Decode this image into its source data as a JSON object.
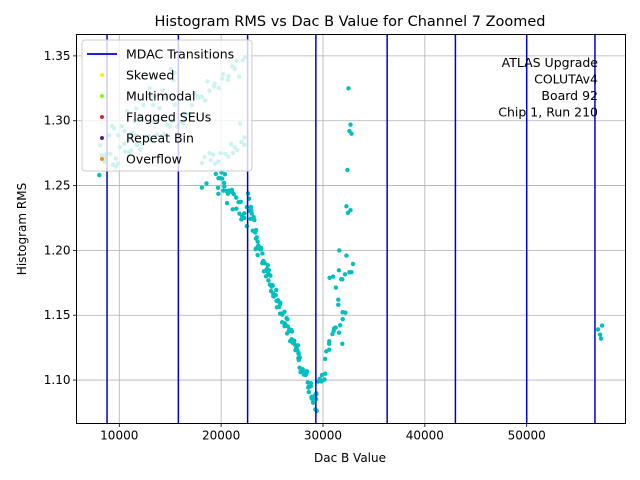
{
  "chart_data": {
    "type": "scatter",
    "title": "Histogram RMS vs Dac B Value for Channel 7 Zoomed",
    "xlabel": "Dac B Value",
    "ylabel": "Histogram RMS",
    "xlim": [
      5800,
      59700
    ],
    "ylim": [
      1.0665,
      1.3665
    ],
    "xticks": [
      10000,
      20000,
      30000,
      40000,
      50000
    ],
    "xtick_labels": [
      "10000",
      "20000",
      "30000",
      "40000",
      "50000"
    ],
    "yticks": [
      1.1,
      1.15,
      1.2,
      1.25,
      1.3,
      1.35
    ],
    "ytick_labels": [
      "1.10",
      "1.15",
      "1.20",
      "1.25",
      "1.30",
      "1.35"
    ],
    "grid": true,
    "legend_position": "upper-left",
    "annotation": [
      "ATLAS Upgrade",
      "COLUTAv4",
      "Board 92",
      "Chip 1, Run 210"
    ],
    "transitions": {
      "name": "MDAC Transitions",
      "color": "#0000cd",
      "x": [
        8800,
        15800,
        22600,
        29300,
        36300,
        43000,
        50000,
        56700
      ]
    },
    "legend": [
      {
        "label": "MDAC Transitions",
        "kind": "line",
        "color": "#0000cd"
      },
      {
        "label": "Skewed",
        "kind": "dot",
        "color": "#ffea00"
      },
      {
        "label": "Multimodal",
        "kind": "dot",
        "color": "#80ff00"
      },
      {
        "label": "Flagged SEUs",
        "kind": "dot",
        "color": "#e0282a"
      },
      {
        "label": "Repeat Bin",
        "kind": "dot",
        "color": "#5a1a8a"
      },
      {
        "label": "Overflow",
        "kind": "dot",
        "color": "#ff8c00"
      }
    ],
    "series": [
      {
        "color": "#00bfbf",
        "segments": [
          {
            "x0": 8000,
            "y0": 1.262,
            "x1": 22400,
            "y1": 1.342,
            "n": 55,
            "jitter": 0.01
          },
          {
            "x0": 8200,
            "y0": 1.272,
            "x1": 15500,
            "y1": 1.338,
            "n": 30,
            "jitter": 0.015
          },
          {
            "x0": 18000,
            "y0": 1.254,
            "x1": 22400,
            "y1": 1.29,
            "n": 22,
            "jitter": 0.015
          },
          {
            "x0": 19500,
            "y0": 1.252,
            "x1": 22600,
            "y1": 1.226,
            "n": 30,
            "jitter": 0.008
          },
          {
            "x0": 22700,
            "y0": 1.24,
            "x1": 23500,
            "y1": 1.205,
            "n": 18,
            "jitter": 0.007
          },
          {
            "x0": 23500,
            "y0": 1.205,
            "x1": 29300,
            "y1": 1.082,
            "n": 95,
            "jitter": 0.006
          },
          {
            "x0": 29300,
            "y0": 1.09,
            "x1": 30200,
            "y1": 1.105,
            "n": 12,
            "jitter": 0.005
          },
          {
            "x0": 30200,
            "y0": 1.122,
            "x1": 32000,
            "y1": 1.148,
            "n": 12,
            "jitter": 0.006
          },
          {
            "x0": 30700,
            "y0": 1.174,
            "x1": 33000,
            "y1": 1.188,
            "n": 10,
            "jitter": 0.006
          }
        ],
        "points": [
          [
            32500,
            1.325
          ],
          [
            32700,
            1.297
          ],
          [
            32600,
            1.292
          ],
          [
            32800,
            1.29
          ],
          [
            32400,
            1.262
          ],
          [
            32300,
            1.234
          ],
          [
            32450,
            1.229
          ],
          [
            32700,
            1.231
          ],
          [
            31600,
            1.2
          ],
          [
            32300,
            1.196
          ],
          [
            31500,
            1.162
          ],
          [
            31500,
            1.158
          ],
          [
            32200,
            1.152
          ],
          [
            31900,
            1.128
          ],
          [
            30600,
            1.128
          ],
          [
            57000,
            1.139
          ],
          [
            57200,
            1.135
          ],
          [
            57400,
            1.142
          ],
          [
            57300,
            1.132
          ]
        ]
      }
    ]
  }
}
